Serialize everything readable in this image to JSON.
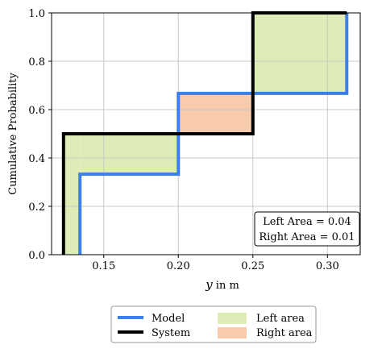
{
  "chart_data": {
    "type": "line",
    "xlabel_var": "y",
    "xlabel_rest": " in m",
    "ylabel": "Cumulative Probability",
    "xlim": [
      0.115,
      0.322
    ],
    "ylim": [
      0,
      1
    ],
    "xticks": [
      0.15,
      0.2,
      0.25,
      0.3
    ],
    "xtick_labels": [
      "0.15",
      "0.20",
      "0.25",
      "0.30"
    ],
    "yticks": [
      0,
      0.2,
      0.4,
      0.6,
      0.8,
      1.0
    ],
    "ytick_labels": [
      "0.0",
      "0.2",
      "0.4",
      "0.6",
      "0.8",
      "1.0"
    ],
    "grid": true,
    "series": [
      {
        "name": "Model",
        "color": "#3a80e8",
        "x": [
          0.134,
          0.134,
          0.2,
          0.2,
          0.25,
          0.25,
          0.313,
          0.313
        ],
        "y": [
          0,
          0.333,
          0.333,
          0.667,
          0.667,
          0.667,
          0.667,
          1.0
        ]
      },
      {
        "name": "System",
        "color": "#000000",
        "x": [
          0.123,
          0.123,
          0.25,
          0.25,
          0.313
        ],
        "y": [
          0,
          0.5,
          0.5,
          1.0,
          1.0
        ]
      }
    ],
    "areas": [
      {
        "name": "Left area",
        "color": "#deedb7",
        "regions": [
          {
            "x0": 0.123,
            "x1": 0.134,
            "y0": 0,
            "y1": 0.5
          },
          {
            "x0": 0.134,
            "x1": 0.2,
            "y0": 0.333,
            "y1": 0.5
          },
          {
            "x0": 0.25,
            "x1": 0.313,
            "y0": 0.667,
            "y1": 1.0
          }
        ]
      },
      {
        "name": "Right area",
        "color": "#f8cbac",
        "regions": [
          {
            "x0": 0.2,
            "x1": 0.25,
            "y0": 0.5,
            "y1": 0.667
          }
        ]
      }
    ],
    "annotations": [
      "Left Area = 0.04",
      "Right Area = 0.01"
    ],
    "annotation_position": "bottom-right",
    "legend_position": "bottom-outside"
  }
}
